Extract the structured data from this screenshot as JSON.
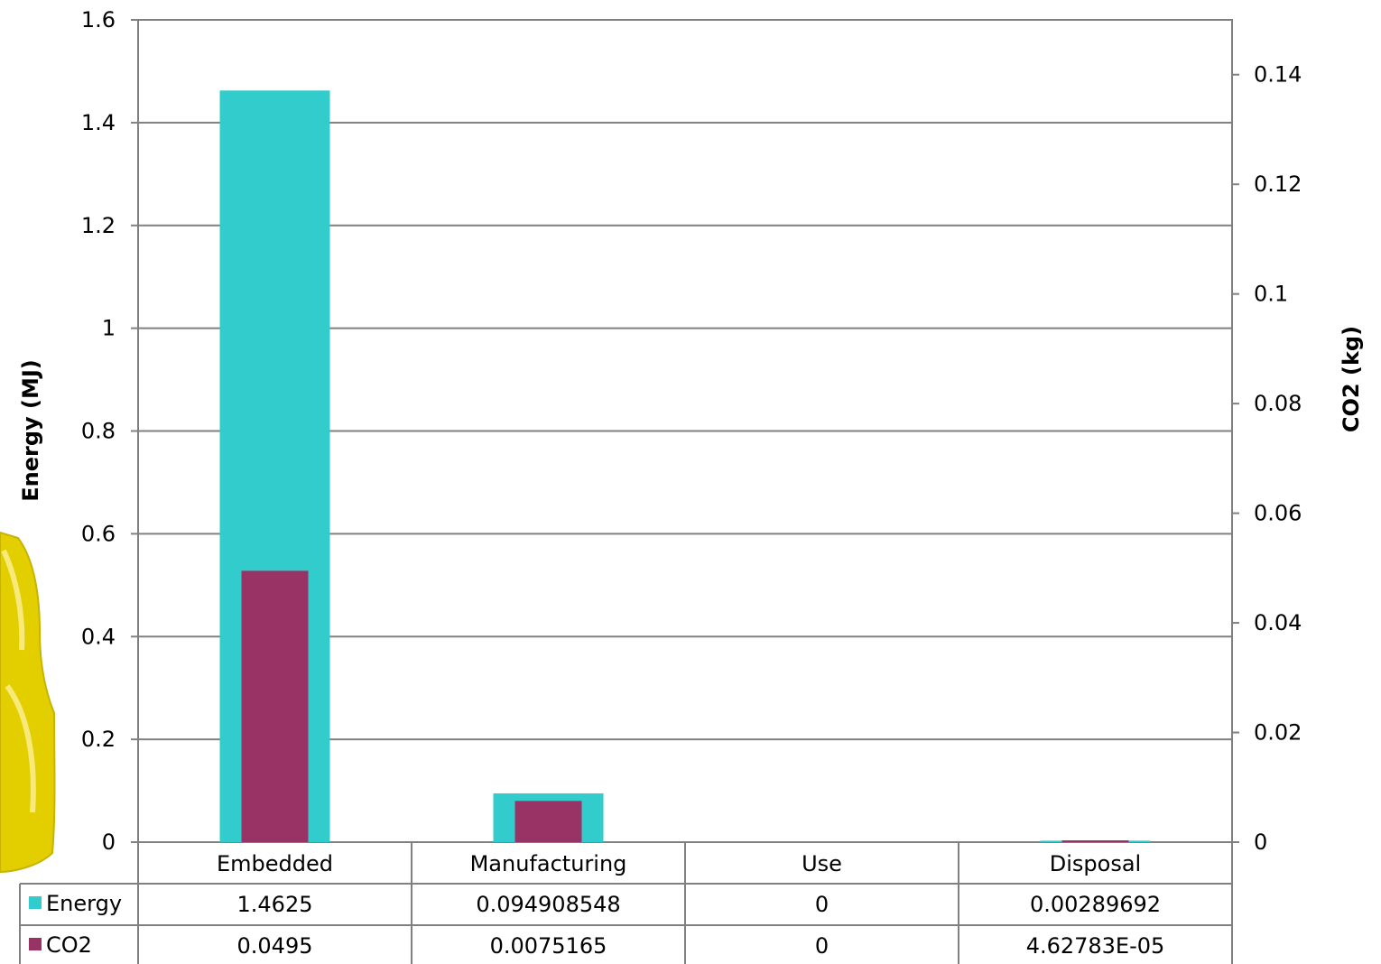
{
  "chart_data": {
    "type": "bar",
    "categories": [
      "Embedded",
      "Manufacturing",
      "Use",
      "Disposal"
    ],
    "series": [
      {
        "name": "Energy",
        "axis": "left",
        "color": "#33cccc",
        "values": [
          1.4625,
          0.094908548,
          0,
          0.00289692
        ],
        "labels": [
          "1.4625",
          "0.094908548",
          "0",
          "0.00289692"
        ]
      },
      {
        "name": "CO2",
        "axis": "right",
        "color": "#993366",
        "values": [
          0.0495,
          0.0075165,
          0,
          4.62783e-05
        ],
        "labels": [
          "0.0495",
          "0.0075165",
          "0",
          "4.62783E-05"
        ]
      }
    ],
    "ylabel": "Energy (MJ)",
    "ylabel_right": "CO2 (kg)",
    "ylim": [
      0,
      1.6
    ],
    "ylim_right": [
      0,
      0.15
    ],
    "yticks": [
      "0",
      "0.2",
      "0.4",
      "0.6",
      "0.8",
      "1",
      "1.2",
      "1.4",
      "1.6"
    ],
    "yticks_right": [
      "0",
      "0.02",
      "0.04",
      "0.06",
      "0.08",
      "0.1",
      "0.12",
      "0.14"
    ],
    "grid": true,
    "legend": "data-table"
  },
  "colors": {
    "energy": "#33cccc",
    "co2": "#993366",
    "grid": "#808080",
    "decoration": "#e8d400"
  },
  "decoration": {
    "name": "yellow-bottle-image"
  }
}
